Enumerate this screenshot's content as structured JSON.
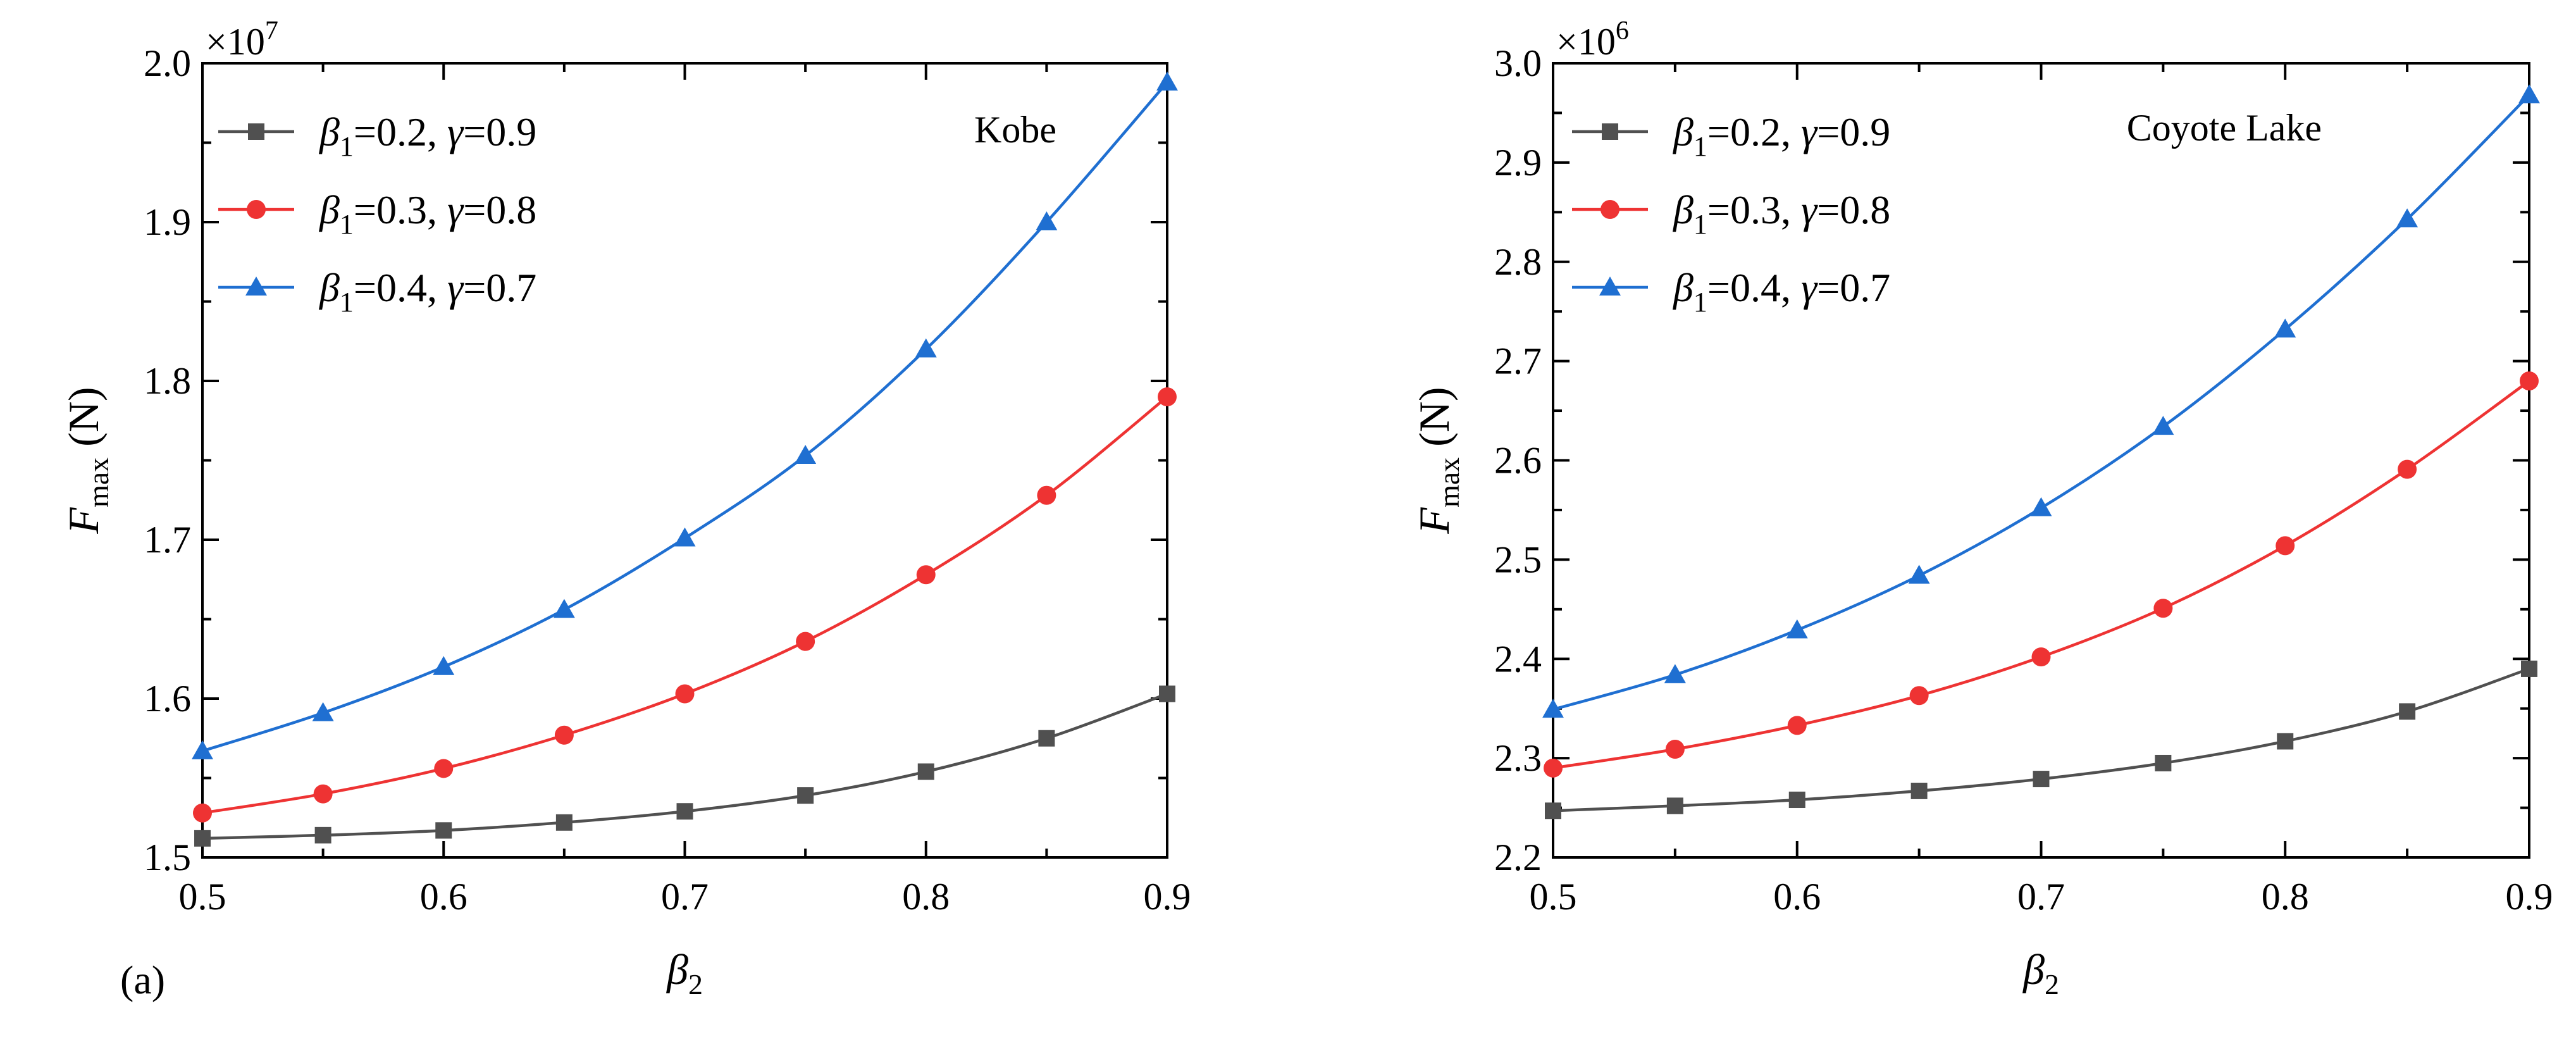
{
  "panel_label": "(a)",
  "chart_data": [
    {
      "type": "line",
      "panel": "left",
      "annotation": "Kobe",
      "xlabel": {
        "main": "β",
        "sub": "2"
      },
      "ylabel": {
        "main": "F",
        "sub": "max",
        "unit": " (N)"
      },
      "multiplier": {
        "base": "×10",
        "exp": "7"
      },
      "xlim": [
        0.5,
        0.9
      ],
      "ylim": [
        1.5,
        2.0
      ],
      "xticks": [
        "0.5",
        "0.6",
        "0.7",
        "0.8",
        "0.9"
      ],
      "yticks": [
        "1.5",
        "1.6",
        "1.7",
        "1.8",
        "1.9",
        "2.0"
      ],
      "legend_position": "top-left",
      "x": [
        0.5,
        0.55,
        0.6,
        0.65,
        0.7,
        0.75,
        0.8,
        0.85,
        0.9
      ],
      "series": [
        {
          "name": {
            "b": "β",
            "bsub": "1",
            "bval": "=0.2, ",
            "g": "γ",
            "gval": "=0.9"
          },
          "marker": "square",
          "color": "#505050",
          "values": [
            1.512,
            1.514,
            1.517,
            1.522,
            1.529,
            1.539,
            1.554,
            1.575,
            1.603
          ]
        },
        {
          "name": {
            "b": "β",
            "bsub": "1",
            "bval": "=0.3, ",
            "g": "γ",
            "gval": "=0.8"
          },
          "marker": "circle",
          "color": "#ee3333",
          "values": [
            1.528,
            1.54,
            1.556,
            1.577,
            1.603,
            1.636,
            1.678,
            1.728,
            1.79
          ]
        },
        {
          "name": {
            "b": "β",
            "bsub": "1",
            "bval": "=0.4, ",
            "g": "γ",
            "gval": "=0.7"
          },
          "marker": "triangle",
          "color": "#1f6fd1",
          "values": [
            1.567,
            1.591,
            1.62,
            1.656,
            1.701,
            1.753,
            1.82,
            1.9,
            1.988
          ]
        }
      ]
    },
    {
      "type": "line",
      "panel": "right",
      "annotation": "Coyote Lake",
      "xlabel": {
        "main": "β",
        "sub": "2"
      },
      "ylabel": {
        "main": "F",
        "sub": "max",
        "unit": " (N)"
      },
      "multiplier": {
        "base": "×10",
        "exp": "6"
      },
      "xlim": [
        0.5,
        0.9
      ],
      "ylim": [
        2.2,
        3.0
      ],
      "xticks": [
        "0.5",
        "0.6",
        "0.7",
        "0.8",
        "0.9"
      ],
      "yticks": [
        "2.2",
        "2.3",
        "2.4",
        "2.5",
        "2.6",
        "2.7",
        "2.8",
        "2.9",
        "3.0"
      ],
      "legend_position": "top-left",
      "x": [
        0.5,
        0.55,
        0.6,
        0.65,
        0.7,
        0.75,
        0.8,
        0.85,
        0.9
      ],
      "series": [
        {
          "name": {
            "b": "β",
            "bsub": "1",
            "bval": "=0.2, ",
            "g": "γ",
            "gval": "=0.9"
          },
          "marker": "square",
          "color": "#505050",
          "values": [
            2.247,
            2.252,
            2.258,
            2.267,
            2.279,
            2.295,
            2.317,
            2.347,
            2.39
          ]
        },
        {
          "name": {
            "b": "β",
            "bsub": "1",
            "bval": "=0.3, ",
            "g": "γ",
            "gval": "=0.8"
          },
          "marker": "circle",
          "color": "#ee3333",
          "values": [
            2.29,
            2.309,
            2.333,
            2.363,
            2.402,
            2.451,
            2.514,
            2.591,
            2.68
          ]
        },
        {
          "name": {
            "b": "β",
            "bsub": "1",
            "bval": "=0.4, ",
            "g": "γ",
            "gval": "=0.7"
          },
          "marker": "triangle",
          "color": "#1f6fd1",
          "values": [
            2.349,
            2.384,
            2.429,
            2.484,
            2.552,
            2.634,
            2.732,
            2.843,
            2.968
          ]
        }
      ]
    }
  ]
}
